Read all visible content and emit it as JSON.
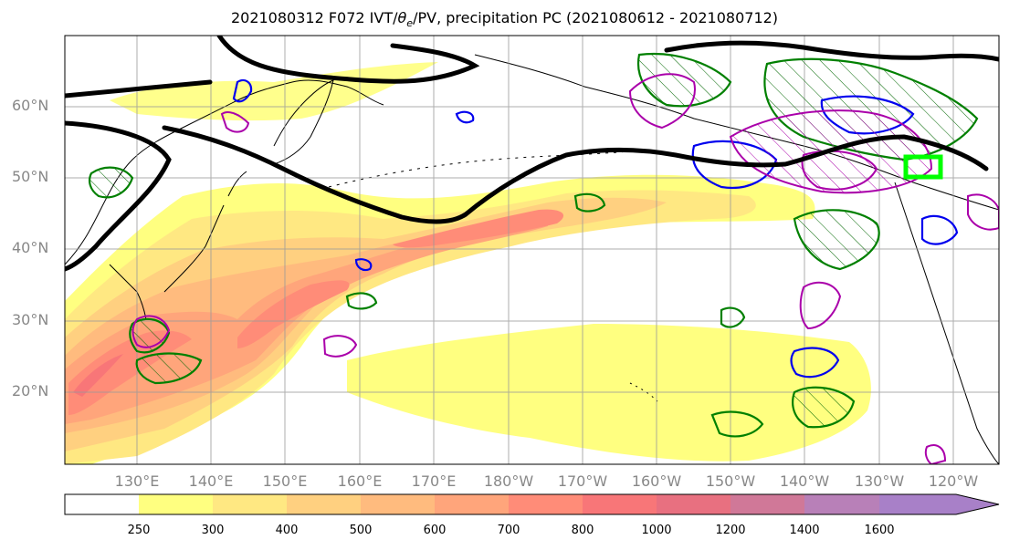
{
  "title": {
    "prefix": "2021080312 F072 IVT/",
    "theta": "θ",
    "theta_sub": "e",
    "suffix": "/PV, precipitation PC (2021080612 - 2021080712)"
  },
  "axes": {
    "lat_labels": [
      "60°N",
      "50°N",
      "40°N",
      "30°N",
      "20°N"
    ],
    "lon_labels": [
      "130°E",
      "140°E",
      "150°E",
      "160°E",
      "170°E",
      "180°W",
      "170°W",
      "160°W",
      "150°W",
      "140°W",
      "130°W",
      "120°W"
    ]
  },
  "colorbar": {
    "levels": [
      "250",
      "300",
      "400",
      "500",
      "600",
      "700",
      "800",
      "1000",
      "1200",
      "1400",
      "1600"
    ],
    "colors": [
      "#ffffff",
      "#ffff80",
      "#ffe882",
      "#ffd080",
      "#ffbb7e",
      "#ffa57b",
      "#ff8c78",
      "#f87678",
      "#e87080",
      "#d07898",
      "#b880b8",
      "#a880c8"
    ]
  },
  "colors": {
    "land_outline": "#000000",
    "theta_e_contour": "#000000",
    "pv_contour": "#aa00aa",
    "precip_green": "#008000",
    "precip_blue": "#0000ee",
    "target_box": "#00ff00",
    "gridline": "#999999"
  }
}
